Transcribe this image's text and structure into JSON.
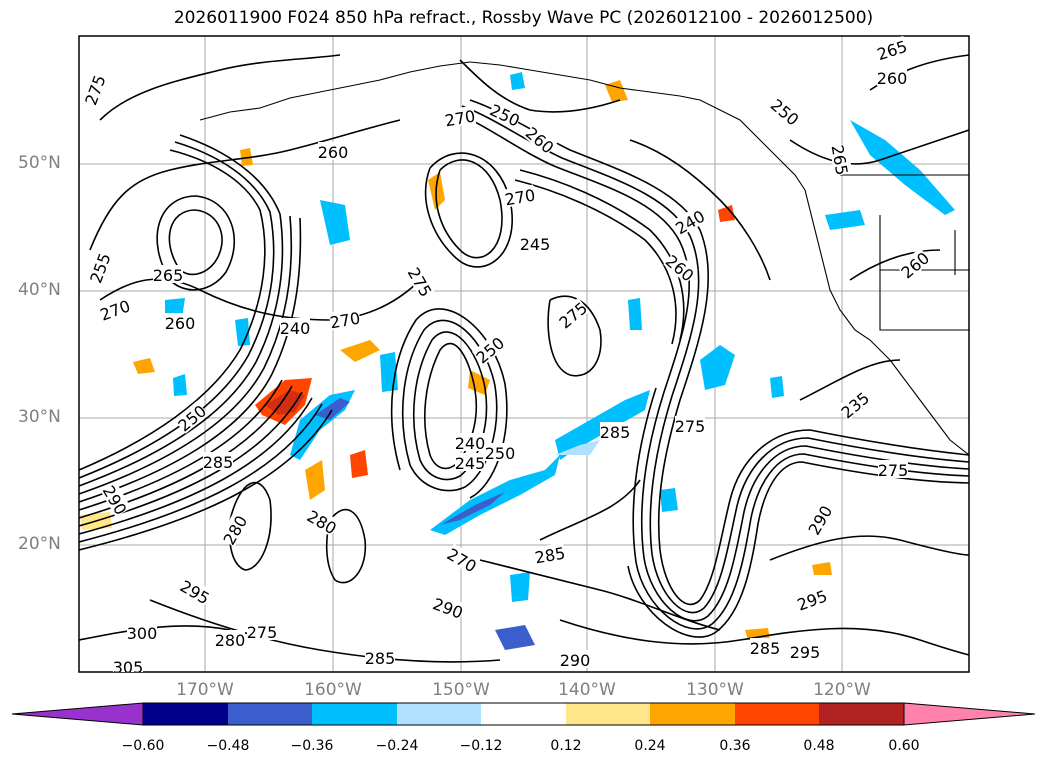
{
  "title": "2026011900 F024 850 hPa refract., Rossby Wave PC (2026012100 - 2026012500)",
  "lat_labels": [
    "50°N",
    "40°N",
    "30°N",
    "20°N"
  ],
  "lon_labels": [
    "170°W",
    "160°W",
    "150°W",
    "140°W",
    "130°W",
    "120°W"
  ],
  "contour_labels": [
    "265",
    "260",
    "250",
    "260",
    "270",
    "250",
    "260",
    "255",
    "265",
    "270",
    "260",
    "275",
    "270",
    "245",
    "240",
    "270",
    "275",
    "275",
    "250",
    "285",
    "250",
    "240",
    "245",
    "250",
    "275",
    "290",
    "280",
    "285",
    "280",
    "270",
    "285",
    "290",
    "295",
    "300",
    "305",
    "275",
    "280",
    "285",
    "290",
    "295",
    "285",
    "295",
    "290",
    "260",
    "235",
    "275",
    "265",
    "240",
    "260"
  ],
  "colorbar": {
    "ticks": [
      "−0.60",
      "−0.48",
      "−0.36",
      "−0.24",
      "−0.12",
      "0.12",
      "0.24",
      "0.36",
      "0.48",
      "0.60"
    ],
    "colors": [
      "#9932cc",
      "#00008b",
      "#3a5fcd",
      "#00bfff",
      "#b0e2ff",
      "#ffffff",
      "#ffe68a",
      "#ffa500",
      "#ff4500",
      "#b22222",
      "#ff82ab"
    ]
  }
}
